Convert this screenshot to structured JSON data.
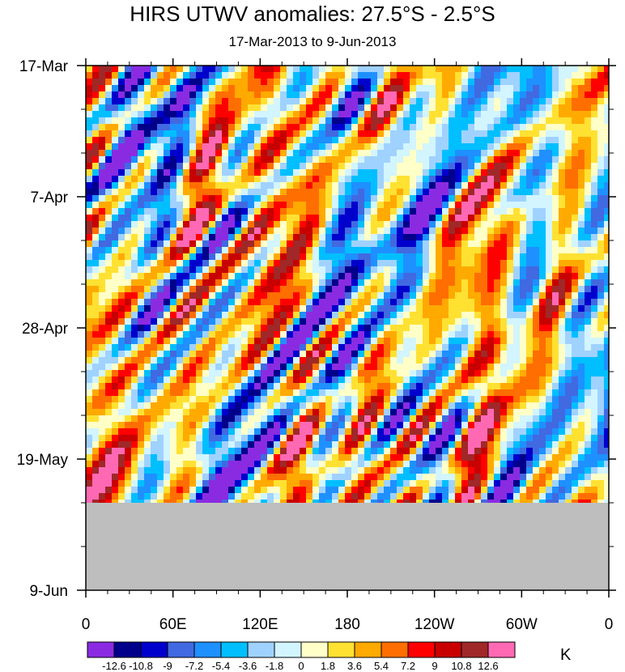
{
  "chart_data": {
    "type": "heatmap",
    "title": "HIRS UTWV anomalies: 27.5°S - 2.5°S",
    "subtitle": "17-Mar-2013 to 9-Jun-2013",
    "xlabel": "",
    "ylabel": "",
    "x_ticks": [
      "0",
      "60E",
      "120E",
      "180",
      "120W",
      "60W",
      "0"
    ],
    "x_range_deg_east": [
      0,
      360
    ],
    "y_ticks": [
      "17-Mar",
      "7-Apr",
      "28-Apr",
      "19-May",
      "9-Jun"
    ],
    "y_range": [
      "2013-03-17",
      "2013-06-09"
    ],
    "colorbar": {
      "units": "K",
      "levels": [
        -12.6,
        -10.8,
        -9,
        -7.2,
        -5.4,
        -3.6,
        -1.8,
        0,
        1.8,
        3.6,
        5.4,
        7.2,
        9,
        10.8,
        12.6
      ],
      "level_labels": [
        "-12.6",
        "-10.8",
        "-9",
        "-7.2",
        "-5.4",
        "-3.6",
        "-1.8",
        "0",
        "1.8",
        "3.6",
        "5.4",
        "7.2",
        "9",
        "10.8",
        "12.6"
      ],
      "colors": [
        "#8a2be2",
        "#00008b",
        "#0000cd",
        "#4169e1",
        "#1e90ff",
        "#00bfff",
        "#a0d2ff",
        "#d2f5ff",
        "#ffffc8",
        "#ffe132",
        "#ffaa00",
        "#ff6e00",
        "#ff0000",
        "#c80000",
        "#a02828",
        "#ff69b4"
      ]
    },
    "missing_data_color": "#bebebe",
    "missing_data_start": "2013-05-26",
    "grid": false
  }
}
